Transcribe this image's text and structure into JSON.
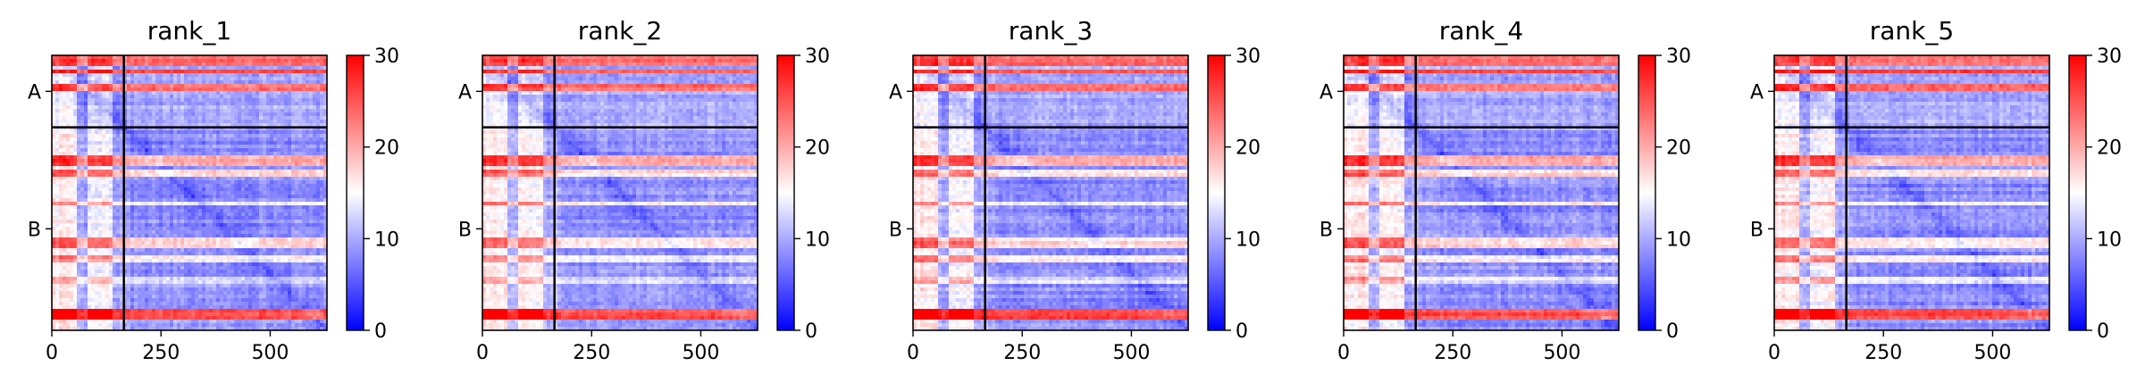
{
  "chart_data": [
    {
      "type": "heatmap",
      "title": "rank_1",
      "x_ticks": [
        0,
        250,
        500
      ],
      "xlim": [
        0,
        630
      ],
      "y_tick_labels": [
        "A",
        "B"
      ],
      "chain_boundary": 165,
      "chain_b_end": 630,
      "colorbar": {
        "ticks": [
          0,
          10,
          20,
          30
        ],
        "range": [
          0,
          30
        ],
        "colors": [
          "#0000ff",
          "#ffffff",
          "#ff0000"
        ]
      }
    },
    {
      "type": "heatmap",
      "title": "rank_2",
      "x_ticks": [
        0,
        250,
        500
      ],
      "xlim": [
        0,
        630
      ],
      "y_tick_labels": [
        "A",
        "B"
      ],
      "chain_boundary": 165,
      "chain_b_end": 630,
      "colorbar": {
        "ticks": [
          0,
          10,
          20,
          30
        ],
        "range": [
          0,
          30
        ],
        "colors": [
          "#0000ff",
          "#ffffff",
          "#ff0000"
        ]
      }
    },
    {
      "type": "heatmap",
      "title": "rank_3",
      "x_ticks": [
        0,
        250,
        500
      ],
      "xlim": [
        0,
        630
      ],
      "y_tick_labels": [
        "A",
        "B"
      ],
      "chain_boundary": 165,
      "chain_b_end": 630,
      "colorbar": {
        "ticks": [
          0,
          10,
          20,
          30
        ],
        "range": [
          0,
          30
        ],
        "colors": [
          "#0000ff",
          "#ffffff",
          "#ff0000"
        ]
      }
    },
    {
      "type": "heatmap",
      "title": "rank_4",
      "x_ticks": [
        0,
        250,
        500
      ],
      "xlim": [
        0,
        630
      ],
      "y_tick_labels": [
        "A",
        "B"
      ],
      "chain_boundary": 165,
      "chain_b_end": 630,
      "colorbar": {
        "ticks": [
          0,
          10,
          20,
          30
        ],
        "range": [
          0,
          30
        ],
        "colors": [
          "#0000ff",
          "#ffffff",
          "#ff0000"
        ]
      }
    },
    {
      "type": "heatmap",
      "title": "rank_5",
      "x_ticks": [
        0,
        250,
        500
      ],
      "xlim": [
        0,
        630
      ],
      "y_tick_labels": [
        "A",
        "B"
      ],
      "chain_boundary": 165,
      "chain_b_end": 630,
      "colorbar": {
        "ticks": [
          0,
          10,
          20,
          30
        ],
        "range": [
          0,
          30
        ],
        "colors": [
          "#0000ff",
          "#ffffff",
          "#ff0000"
        ]
      }
    }
  ]
}
